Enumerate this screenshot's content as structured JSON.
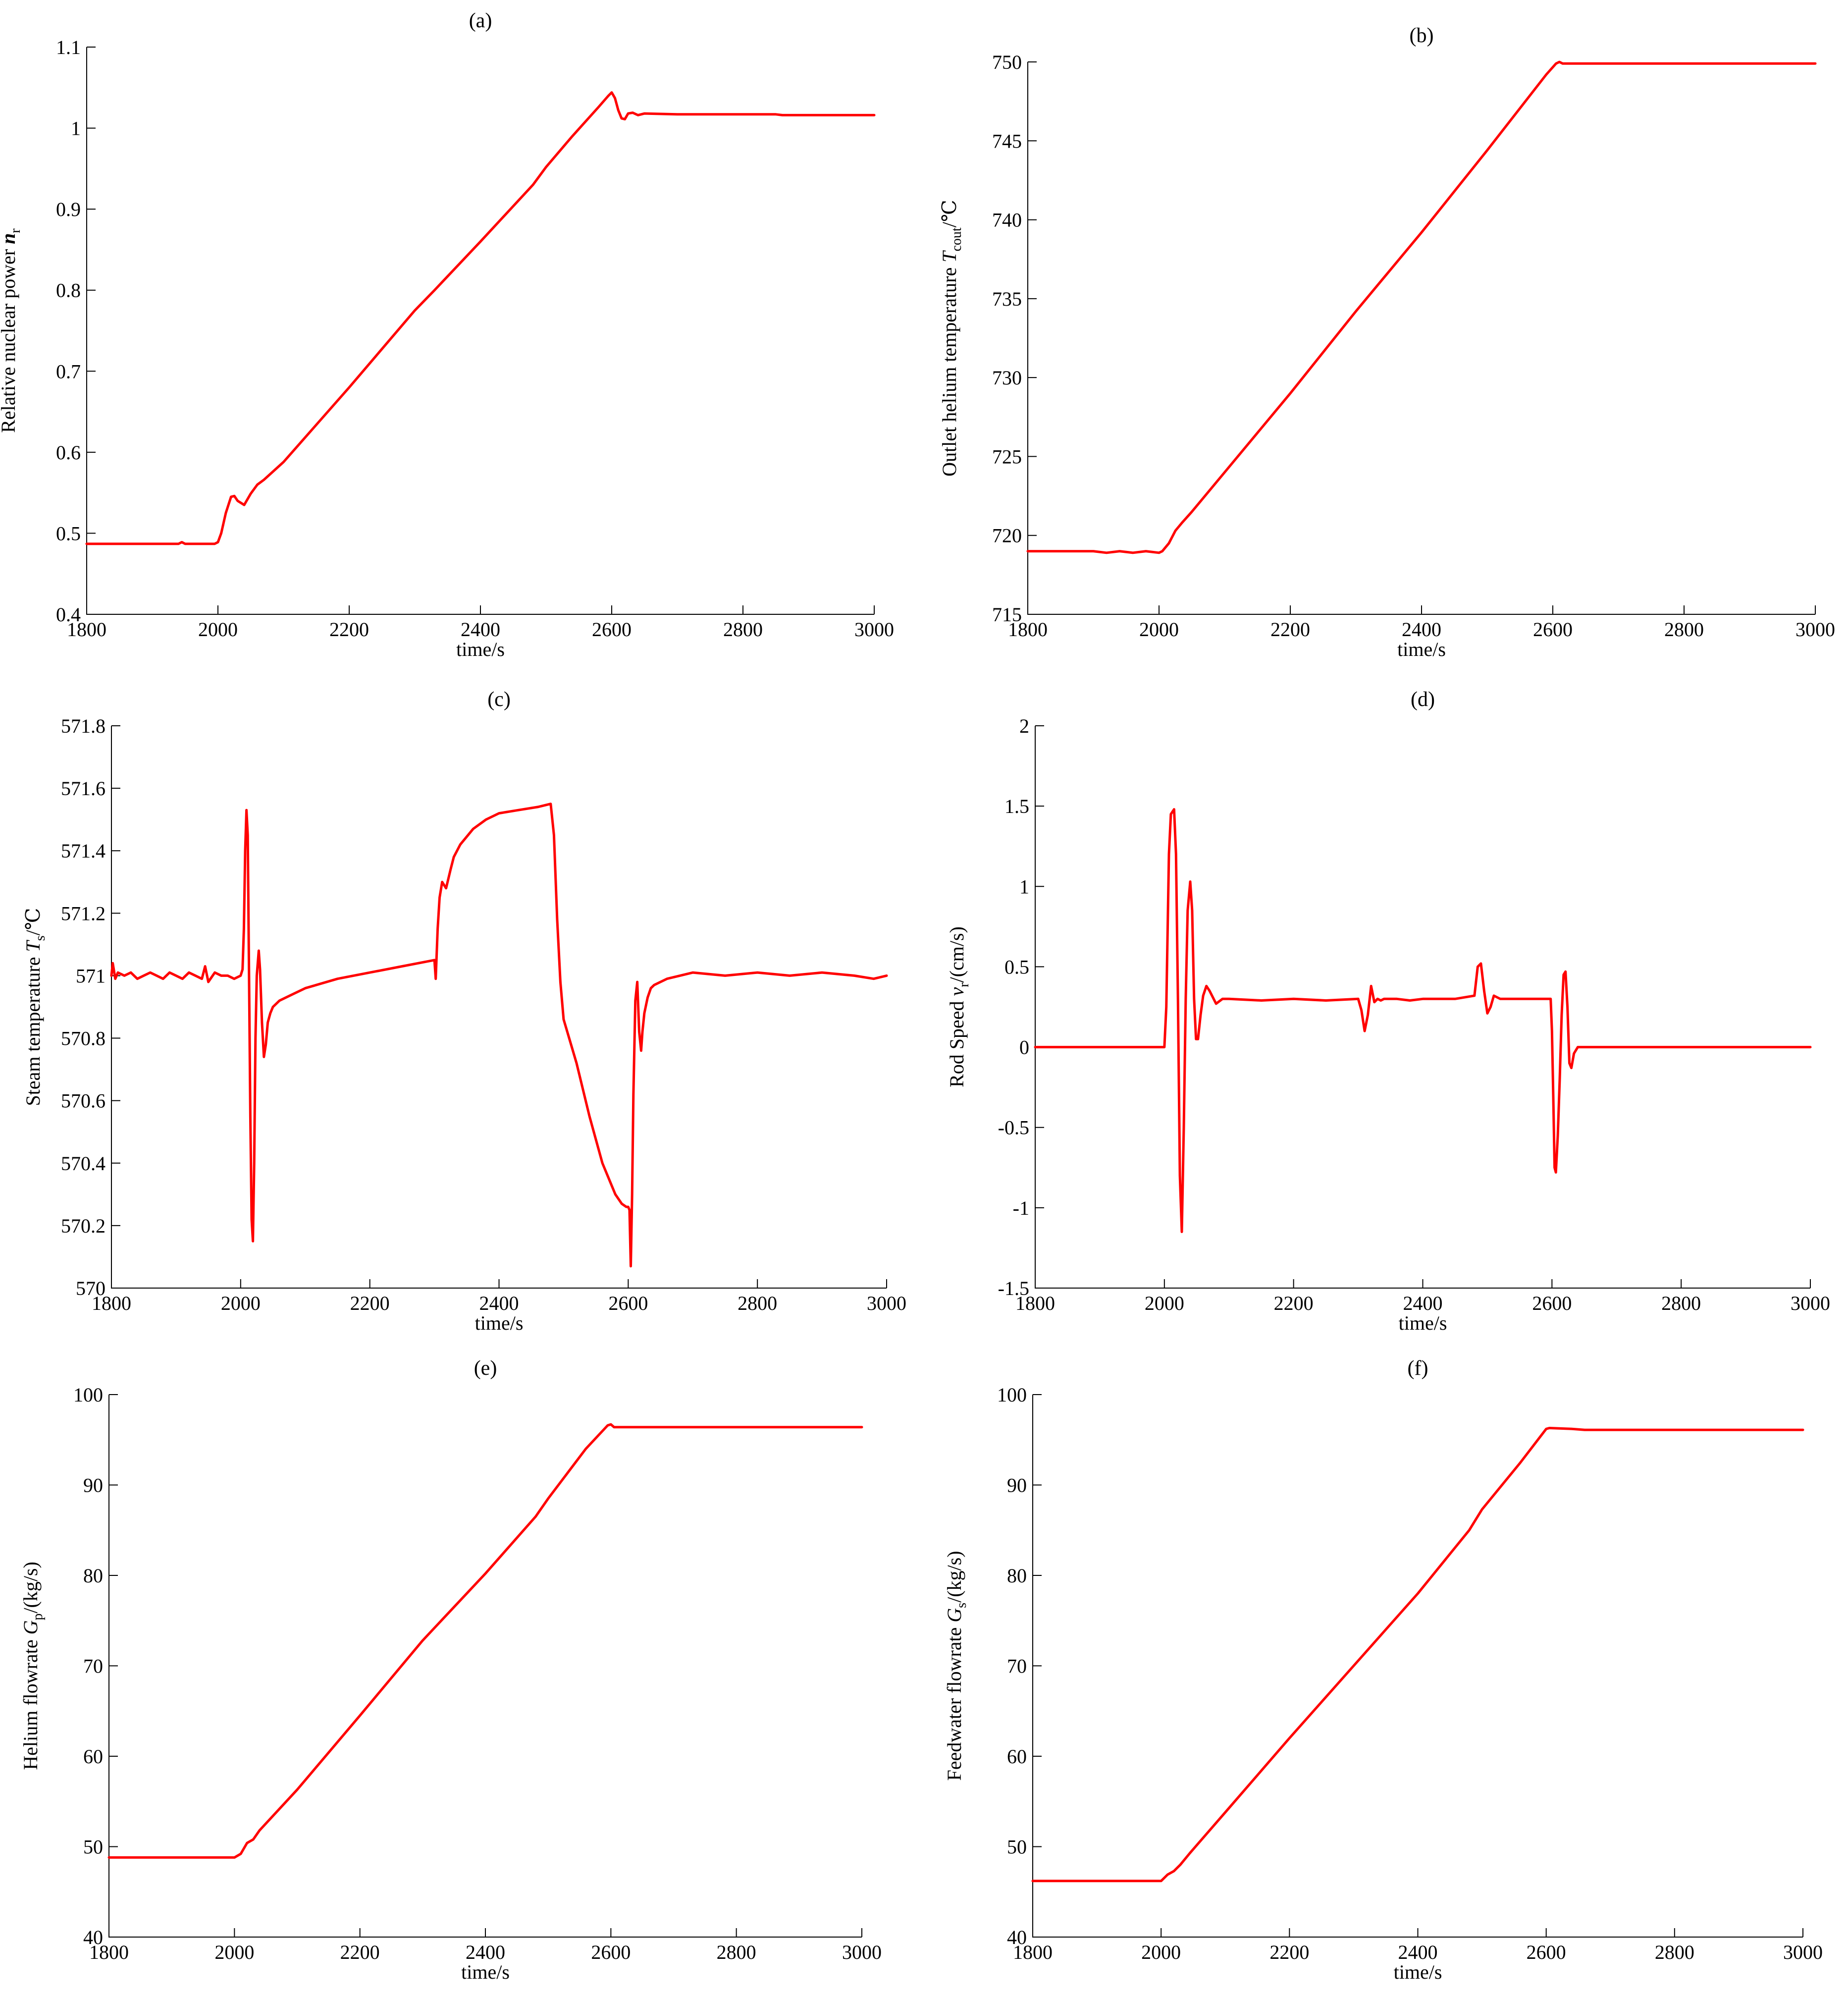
{
  "colors": {
    "series": "#ff0000",
    "axis": "#000000"
  },
  "chart_data": [
    {
      "type": "line",
      "panel_label": "(a)",
      "xlabel": "time/s",
      "ylabel": {
        "text": "Relative nuclear power ",
        "sym": "n",
        "sub": "r",
        "unit": ""
      },
      "xlim": [
        1800,
        3000
      ],
      "ylim": [
        0.4,
        1.1
      ],
      "xticks": [
        1800,
        2000,
        2200,
        2400,
        2600,
        2800,
        3000
      ],
      "xtick_labels": [
        "1800",
        "2000",
        "2200",
        "2400",
        "2600",
        "2800",
        "3000"
      ],
      "yticks": [
        0.4,
        0.5,
        0.6,
        0.7,
        0.8,
        0.9,
        1.0,
        1.1
      ],
      "ytick_labels": [
        "0.4",
        "0.5",
        "0.6",
        "0.7",
        "0.8",
        "0.9",
        "1",
        "1.1"
      ],
      "grid": false,
      "series": [
        {
          "x": [
            1800,
            1940,
            1945,
            1950,
            1995,
            2000,
            2005,
            2012,
            2020,
            2025,
            2030,
            2040,
            2050,
            2060,
            2070,
            2100,
            2200,
            2300,
            2330,
            2400,
            2480,
            2500,
            2540,
            2580,
            2595,
            2600,
            2605,
            2610,
            2615,
            2620,
            2625,
            2632,
            2640,
            2650,
            2700,
            2850,
            2860,
            3000
          ],
          "y": [
            0.487,
            0.487,
            0.489,
            0.487,
            0.487,
            0.489,
            0.5,
            0.525,
            0.545,
            0.546,
            0.54,
            0.535,
            0.549,
            0.56,
            0.566,
            0.588,
            0.68,
            0.775,
            0.8,
            0.86,
            0.93,
            0.952,
            0.99,
            1.026,
            1.04,
            1.044,
            1.037,
            1.022,
            1.012,
            1.011,
            1.018,
            1.019,
            1.016,
            1.018,
            1.017,
            1.017,
            1.016,
            1.016
          ]
        }
      ]
    },
    {
      "type": "line",
      "panel_label": "(b)",
      "xlabel": "time/s",
      "ylabel": {
        "text": "Outlet helium temperature ",
        "sym": "T",
        "sub": "cout",
        "unit": "/℃"
      },
      "xlim": [
        1800,
        3000
      ],
      "ylim": [
        715,
        750
      ],
      "xticks": [
        1800,
        2000,
        2200,
        2400,
        2600,
        2800,
        3000
      ],
      "xtick_labels": [
        "1800",
        "2000",
        "2200",
        "2400",
        "2600",
        "2800",
        "3000"
      ],
      "yticks": [
        715,
        720,
        725,
        730,
        735,
        740,
        745,
        750
      ],
      "ytick_labels": [
        "715",
        "720",
        "725",
        "730",
        "735",
        "740",
        "745",
        "750"
      ],
      "grid": false,
      "series": [
        {
          "x": [
            1800,
            1900,
            1920,
            1940,
            1960,
            1980,
            2000,
            2005,
            2015,
            2025,
            2035,
            2050,
            2100,
            2200,
            2300,
            2400,
            2500,
            2590,
            2605,
            2610,
            2615,
            2630,
            3000
          ],
          "y": [
            719.0,
            719.0,
            718.9,
            719.0,
            718.9,
            719.0,
            718.9,
            719.0,
            719.5,
            720.3,
            720.8,
            721.5,
            724.0,
            729.0,
            734.2,
            739.2,
            744.4,
            749.2,
            749.9,
            750.0,
            749.9,
            749.9,
            749.9
          ]
        }
      ]
    },
    {
      "type": "line",
      "panel_label": "(c)",
      "xlabel": "time/s",
      "ylabel": {
        "text": "Steam temperature ",
        "sym": "T",
        "sub": "s",
        "unit": "/℃"
      },
      "xlim": [
        1800,
        3000
      ],
      "ylim": [
        570,
        571.8
      ],
      "xticks": [
        1800,
        2000,
        2200,
        2400,
        2600,
        2800,
        3000
      ],
      "xtick_labels": [
        "1800",
        "2000",
        "2200",
        "2400",
        "2600",
        "2800",
        "3000"
      ],
      "yticks": [
        570,
        570.2,
        570.4,
        570.6,
        570.8,
        571,
        571.2,
        571.4,
        571.6,
        571.8
      ],
      "ytick_labels": [
        "570",
        "570.2",
        "570.4",
        "570.6",
        "570.8",
        "571",
        "571.2",
        "571.4",
        "571.6",
        "571.8"
      ],
      "grid": false,
      "series": [
        {
          "x": [
            1800,
            1802,
            1806,
            1810,
            1820,
            1830,
            1840,
            1850,
            1860,
            1870,
            1880,
            1890,
            1900,
            1910,
            1920,
            1930,
            1940,
            1945,
            1950,
            1960,
            1970,
            1980,
            1990,
            2000,
            2003,
            2005,
            2007,
            2009,
            2011,
            2013,
            2015,
            2017,
            2019,
            2021,
            2023,
            2025,
            2028,
            2030,
            2033,
            2036,
            2039,
            2042,
            2046,
            2050,
            2060,
            2080,
            2100,
            2150,
            2200,
            2250,
            2300,
            2302,
            2305,
            2308,
            2312,
            2318,
            2325,
            2330,
            2340,
            2360,
            2380,
            2400,
            2430,
            2460,
            2480,
            2485,
            2490,
            2495,
            2500,
            2520,
            2540,
            2560,
            2580,
            2590,
            2597,
            2600,
            2602,
            2604,
            2606,
            2608,
            2611,
            2614,
            2617,
            2620,
            2622,
            2625,
            2630,
            2635,
            2640,
            2660,
            2680,
            2700,
            2750,
            2800,
            2850,
            2900,
            2950,
            2980,
            3000
          ],
          "y": [
            571.0,
            571.04,
            570.99,
            571.01,
            571.0,
            571.01,
            570.99,
            571.0,
            571.01,
            571.0,
            570.99,
            571.01,
            571.0,
            570.99,
            571.01,
            571.0,
            570.99,
            571.03,
            570.98,
            571.01,
            571.0,
            571.0,
            570.99,
            571.0,
            571.02,
            571.15,
            571.4,
            571.53,
            571.45,
            571.0,
            570.55,
            570.22,
            570.15,
            570.4,
            570.8,
            571.0,
            571.08,
            571.02,
            570.85,
            570.74,
            570.78,
            570.85,
            570.88,
            570.9,
            570.92,
            570.94,
            570.96,
            570.99,
            571.01,
            571.03,
            571.05,
            570.99,
            571.15,
            571.25,
            571.3,
            571.28,
            571.34,
            571.38,
            571.42,
            571.47,
            571.5,
            571.52,
            571.53,
            571.54,
            571.55,
            571.45,
            571.18,
            570.98,
            570.86,
            570.72,
            570.55,
            570.4,
            570.3,
            570.27,
            570.26,
            570.26,
            570.25,
            570.07,
            570.3,
            570.62,
            570.92,
            570.98,
            570.82,
            570.76,
            570.82,
            570.88,
            570.93,
            570.96,
            570.97,
            570.99,
            571.0,
            571.01,
            571.0,
            571.01,
            571.0,
            571.01,
            571.0,
            570.99,
            571.0
          ]
        }
      ]
    },
    {
      "type": "line",
      "panel_label": "(d)",
      "xlabel": "time/s",
      "ylabel": {
        "text": "Rod Speed ",
        "sym": "v",
        "sub": "r",
        "unit": "/(cm/s)"
      },
      "xlim": [
        1800,
        3000
      ],
      "ylim": [
        -1.5,
        2
      ],
      "xticks": [
        1800,
        2000,
        2200,
        2400,
        2600,
        2800,
        3000
      ],
      "xtick_labels": [
        "1800",
        "2000",
        "2200",
        "2400",
        "2600",
        "2800",
        "3000"
      ],
      "yticks": [
        -1.5,
        -1,
        -0.5,
        0,
        0.5,
        1,
        1.5,
        2
      ],
      "ytick_labels": [
        "-1.5",
        "-1",
        "-0.5",
        "0",
        "0.5",
        "1",
        "1.5",
        "2"
      ],
      "grid": false,
      "series": [
        {
          "x": [
            1800,
            1900,
            1950,
            2000,
            2003,
            2007,
            2010,
            2015,
            2018,
            2021,
            2024,
            2027,
            2030,
            2033,
            2036,
            2040,
            2043,
            2046,
            2049,
            2052,
            2056,
            2060,
            2065,
            2070,
            2080,
            2090,
            2100,
            2150,
            2200,
            2250,
            2300,
            2305,
            2310,
            2315,
            2320,
            2325,
            2330,
            2335,
            2340,
            2360,
            2380,
            2400,
            2450,
            2480,
            2485,
            2490,
            2495,
            2500,
            2505,
            2510,
            2520,
            2550,
            2580,
            2598,
            2600,
            2602,
            2604,
            2606,
            2609,
            2612,
            2615,
            2618,
            2621,
            2624,
            2627,
            2630,
            2634,
            2640,
            2650,
            2700,
            2800,
            2900,
            3000
          ],
          "y": [
            0.0,
            0.0,
            0.0,
            0.0,
            0.25,
            1.2,
            1.45,
            1.48,
            1.2,
            0.3,
            -0.8,
            -1.15,
            -0.5,
            0.3,
            0.85,
            1.03,
            0.85,
            0.3,
            0.05,
            0.05,
            0.2,
            0.32,
            0.38,
            0.35,
            0.27,
            0.3,
            0.3,
            0.29,
            0.3,
            0.29,
            0.3,
            0.23,
            0.1,
            0.2,
            0.38,
            0.28,
            0.3,
            0.29,
            0.3,
            0.3,
            0.29,
            0.3,
            0.3,
            0.32,
            0.5,
            0.52,
            0.35,
            0.21,
            0.25,
            0.32,
            0.3,
            0.3,
            0.3,
            0.3,
            0.1,
            -0.3,
            -0.75,
            -0.78,
            -0.55,
            -0.2,
            0.2,
            0.45,
            0.47,
            0.25,
            -0.1,
            -0.13,
            -0.04,
            0.0,
            0.0,
            0.0,
            0.0,
            0.0,
            0.0
          ]
        }
      ]
    },
    {
      "type": "line",
      "panel_label": "(e)",
      "xlabel": "time/s",
      "ylabel": {
        "text": "Helium flowrate ",
        "sym": "G",
        "sub": "p",
        "unit": "/(kg/s)"
      },
      "xlim": [
        1800,
        3000
      ],
      "ylim": [
        40,
        100
      ],
      "xticks": [
        1800,
        2000,
        2200,
        2400,
        2600,
        2800,
        3000
      ],
      "xtick_labels": [
        "1800",
        "2000",
        "2200",
        "2400",
        "2600",
        "2800",
        "3000"
      ],
      "yticks": [
        40,
        50,
        60,
        70,
        80,
        90,
        100
      ],
      "ytick_labels": [
        "40",
        "50",
        "60",
        "70",
        "80",
        "90",
        "100"
      ],
      "grid": false,
      "series": [
        {
          "x": [
            1800,
            2000,
            2010,
            2020,
            2030,
            2040,
            2100,
            2200,
            2300,
            2400,
            2480,
            2500,
            2560,
            2595,
            2600,
            2605,
            2620,
            2700,
            3000
          ],
          "y": [
            48.8,
            48.8,
            49.2,
            50.4,
            50.8,
            51.8,
            56.3,
            64.5,
            72.8,
            80.2,
            86.5,
            88.5,
            94.0,
            96.6,
            96.7,
            96.4,
            96.4,
            96.4,
            96.4
          ]
        }
      ]
    },
    {
      "type": "line",
      "panel_label": "(f)",
      "xlabel": "time/s",
      "ylabel": {
        "text": "Feedwater flowrate ",
        "sym": "G",
        "sub": "s",
        "unit": "/(kg/s)"
      },
      "xlim": [
        1800,
        3000
      ],
      "ylim": [
        40,
        100
      ],
      "xticks": [
        1800,
        2000,
        2200,
        2400,
        2600,
        2800,
        3000
      ],
      "xtick_labels": [
        "1800",
        "2000",
        "2200",
        "2400",
        "2600",
        "2800",
        "3000"
      ],
      "yticks": [
        40,
        50,
        60,
        70,
        80,
        90,
        100
      ],
      "ytick_labels": [
        "40",
        "50",
        "60",
        "70",
        "80",
        "90",
        "100"
      ],
      "grid": false,
      "series": [
        {
          "x": [
            1800,
            2000,
            2010,
            2020,
            2030,
            2045,
            2100,
            2200,
            2300,
            2400,
            2480,
            2500,
            2560,
            2600,
            2605,
            2640,
            2660,
            3000
          ],
          "y": [
            46.2,
            46.2,
            46.9,
            47.3,
            48.0,
            49.3,
            53.8,
            62.0,
            70.0,
            78.0,
            85.0,
            87.3,
            92.5,
            96.2,
            96.3,
            96.2,
            96.1,
            96.1
          ]
        }
      ]
    }
  ]
}
